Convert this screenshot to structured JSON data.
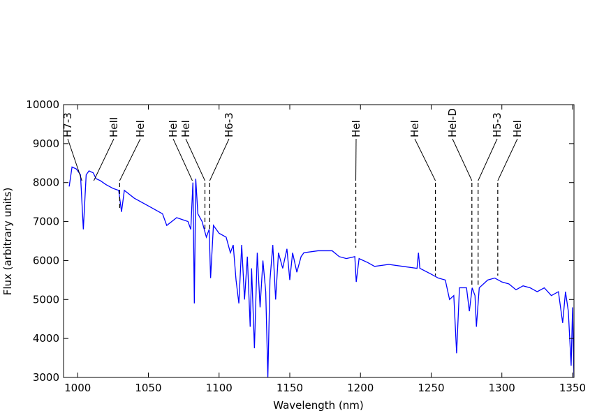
{
  "chart_data": {
    "type": "line",
    "xlabel": "Wavelength (nm)",
    "ylabel": "Flux (arbitrary units)",
    "xlim": [
      990,
      1351
    ],
    "ylim": [
      3000,
      10000
    ],
    "xticks": [
      1000,
      1050,
      1100,
      1150,
      1200,
      1250,
      1300,
      1350
    ],
    "yticks": [
      3000,
      4000,
      5000,
      6000,
      7000,
      8000,
      9000,
      10000
    ],
    "series": [
      {
        "color": "#0000ff",
        "x": [
          994,
          996,
          999,
          1002,
          1004,
          1006,
          1008,
          1011,
          1013,
          1016,
          1020,
          1025,
          1029,
          1031,
          1033,
          1040,
          1050,
          1060,
          1063,
          1070,
          1078,
          1080,
          1081.5,
          1082.5,
          1083.5,
          1085,
          1088,
          1091,
          1093,
          1094,
          1096,
          1100,
          1105,
          1108,
          1110,
          1112,
          1114,
          1116,
          1118,
          1120,
          1122,
          1123,
          1125,
          1127,
          1129,
          1131,
          1133,
          1134.5,
          1136,
          1138,
          1140,
          1142,
          1145,
          1148,
          1150,
          1152,
          1155,
          1158,
          1160,
          1170,
          1180,
          1185,
          1190,
          1196,
          1197,
          1199,
          1205,
          1210,
          1220,
          1230,
          1240,
          1241,
          1242,
          1250,
          1255,
          1260,
          1263,
          1266,
          1268,
          1270,
          1275,
          1277,
          1279,
          1281,
          1282,
          1284,
          1290,
          1295,
          1300,
          1305,
          1310,
          1315,
          1320,
          1325,
          1330,
          1335,
          1340,
          1343,
          1345,
          1347,
          1349,
          1350,
          1351
        ],
        "values": [
          7900,
          8400,
          8350,
          8200,
          6800,
          8200,
          8300,
          8250,
          8100,
          8050,
          7950,
          7850,
          7800,
          7250,
          7800,
          7600,
          7400,
          7200,
          6900,
          7100,
          7000,
          6800,
          8000,
          4900,
          8100,
          7200,
          7000,
          6600,
          6800,
          5550,
          6900,
          6700,
          6600,
          6200,
          6400,
          5500,
          4900,
          6400,
          5000,
          6100,
          4300,
          5800,
          3750,
          6200,
          4800,
          6000,
          5200,
          3000,
          5500,
          6400,
          5000,
          6200,
          5800,
          6300,
          5500,
          6200,
          5700,
          6100,
          6200,
          6250,
          6250,
          6100,
          6050,
          6100,
          5450,
          6050,
          5950,
          5850,
          5900,
          5850,
          5800,
          6200,
          5800,
          5650,
          5550,
          5500,
          5000,
          5100,
          3620,
          5300,
          5300,
          4700,
          5300,
          5100,
          4300,
          5300,
          5500,
          5550,
          5450,
          5400,
          5250,
          5350,
          5300,
          5200,
          5300,
          5100,
          5200,
          4400,
          5200,
          4700,
          3300,
          4800,
          3000
        ]
      }
    ],
    "annotations": [
      {
        "text": "H7-3",
        "x": 1003
      },
      {
        "text": "HeII",
        "x": 1011.4
      },
      {
        "text": "HeI",
        "x": 1029.7
      },
      {
        "text": "HeI",
        "x": 1081.1
      },
      {
        "text": "HeI",
        "x": 1090
      },
      {
        "text": "H6-3",
        "x": 1093.4
      },
      {
        "text": "HeI",
        "x": 1196.7
      },
      {
        "text": "HeI",
        "x": 1253
      },
      {
        "text": "HeI-D",
        "x": 1278.8
      },
      {
        "text": "H5-3",
        "x": 1283.2
      },
      {
        "text": "HeI",
        "x": 1297.1
      }
    ]
  }
}
